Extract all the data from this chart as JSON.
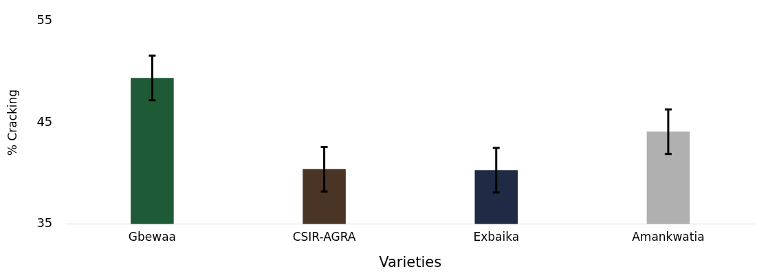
{
  "chart_data": {
    "type": "bar",
    "xlabel": "Varieties",
    "ylabel": "% Cracking",
    "categories": [
      "Gbewaa",
      "CSIR-AGRA",
      "Exbaika",
      "Amankwatia"
    ],
    "values": [
      49.4,
      40.4,
      40.3,
      44.1
    ],
    "errors": [
      2.2,
      2.2,
      2.2,
      2.2
    ],
    "colors": [
      "#1e5a35",
      "#4a3425",
      "#1f2a44",
      "#b0b0b0"
    ],
    "ylim": [
      35,
      55
    ],
    "yticks": [
      35,
      45,
      55
    ],
    "grid": false,
    "legend": false
  }
}
